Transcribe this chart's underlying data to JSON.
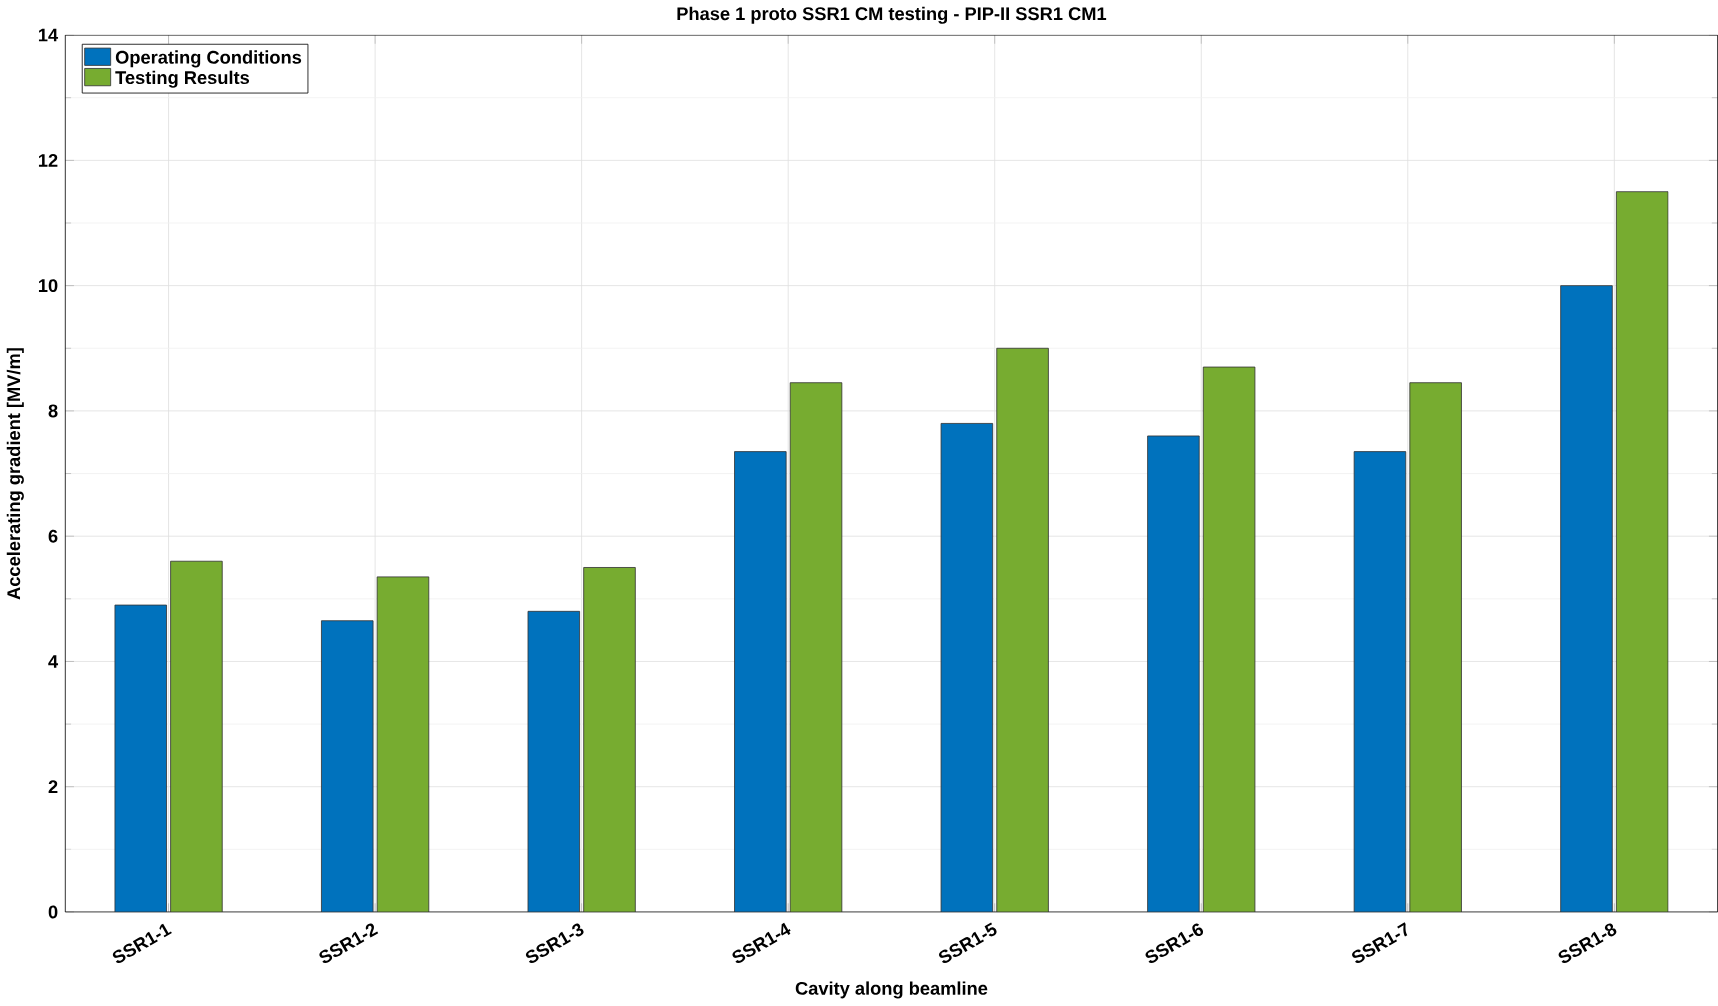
{
  "chart_data": {
    "type": "bar",
    "title": "Phase 1 proto SSR1 CM testing - PIP-II SSR1 CM1",
    "xlabel": "Cavity along beamline",
    "ylabel": "Accelerating gradient [MV/m]",
    "categories": [
      "SSR1-1",
      "SSR1-2",
      "SSR1-3",
      "SSR1-4",
      "SSR1-5",
      "SSR1-6",
      "SSR1-7",
      "SSR1-8"
    ],
    "series": [
      {
        "name": "Operating Conditions",
        "color": "#0072bd",
        "values": [
          4.9,
          4.65,
          4.8,
          7.35,
          7.8,
          7.6,
          7.35,
          10.0
        ]
      },
      {
        "name": "Testing Results",
        "color": "#77ac30",
        "values": [
          5.6,
          5.35,
          5.5,
          8.45,
          9.0,
          8.7,
          8.45,
          11.5
        ]
      }
    ],
    "ylim": [
      0,
      14
    ],
    "yticks": [
      0,
      2,
      4,
      6,
      8,
      10,
      12,
      14
    ],
    "grid": true,
    "legend": "top left"
  }
}
